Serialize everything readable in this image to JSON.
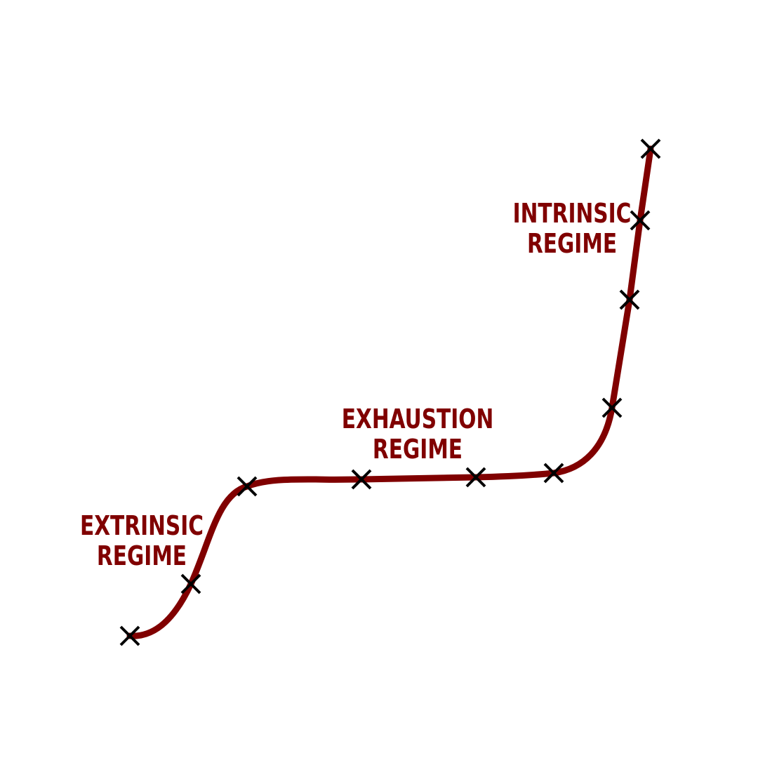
{
  "colors": {
    "curve": "#800000",
    "label": "#800000",
    "marker": "#000000",
    "background": "#ffffff"
  },
  "labels": {
    "extrinsic": [
      "EXTRINSIC",
      "REGIME"
    ],
    "exhaustion": [
      "EXHAUSTION",
      "REGIME"
    ],
    "intrinsic": [
      "INTRINSIC",
      "REGIME"
    ]
  },
  "markers": {
    "count": 10,
    "symbol": "cross-marker"
  }
}
